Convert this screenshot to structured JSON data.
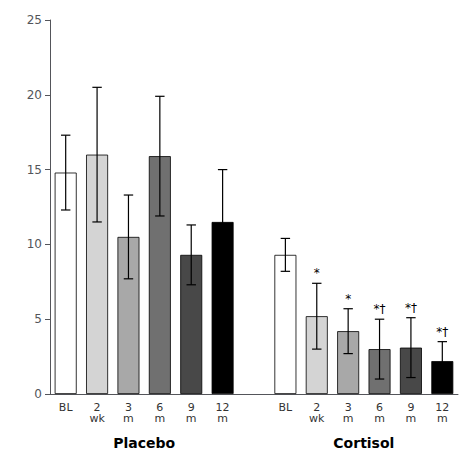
{
  "chart_data": {
    "type": "bar",
    "categories": [
      "BL",
      "2\nwk",
      "3\nm",
      "6\nm",
      "9\nm",
      "12\nm"
    ],
    "series": [
      {
        "name": "Placebo",
        "values": [
          14.8,
          16.0,
          10.5,
          15.9,
          9.3,
          11.5
        ],
        "errors": [
          2.5,
          4.5,
          2.8,
          4.0,
          2.0,
          3.5
        ],
        "colors": [
          "#ffffff",
          "#d4d4d4",
          "#a8a8a8",
          "#707070",
          "#484848",
          "#000000"
        ]
      },
      {
        "name": "Cortisol",
        "values": [
          9.3,
          5.2,
          4.2,
          3.0,
          3.1,
          2.2
        ],
        "errors": [
          1.1,
          2.2,
          1.5,
          2.0,
          2.0,
          1.3
        ],
        "annotations": [
          null,
          "*",
          "*",
          "*†",
          "*†",
          "*†"
        ],
        "colors": [
          "#ffffff",
          "#d4d4d4",
          "#a8a8a8",
          "#707070",
          "#484848",
          "#000000"
        ]
      }
    ],
    "ylim": [
      0,
      25
    ],
    "yticks": [
      0,
      5,
      10,
      15,
      20,
      25
    ],
    "grid": false
  }
}
